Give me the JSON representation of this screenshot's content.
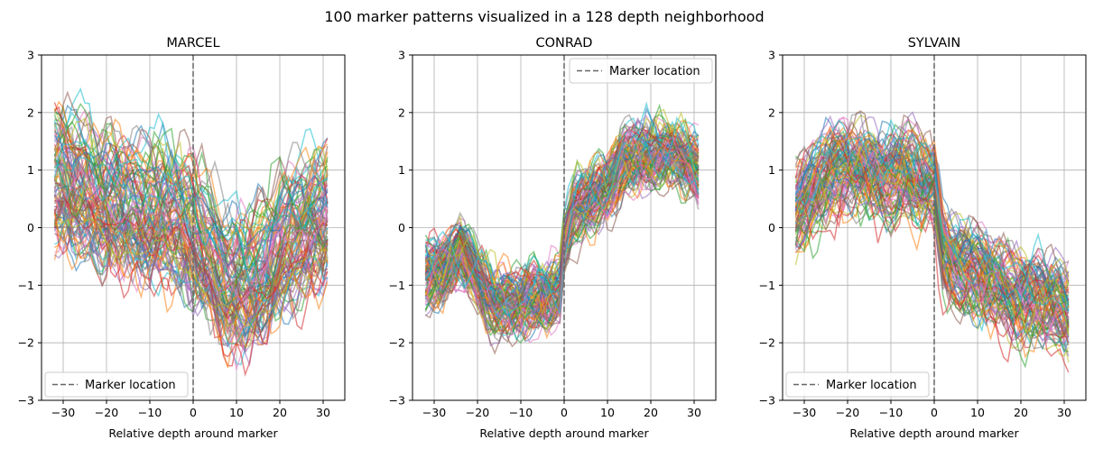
{
  "suptitle": "100 marker patterns visualized in a 128 depth neighborhood",
  "legend_label": "Marker location",
  "chart_data": [
    {
      "type": "line",
      "title": "MARCEL",
      "xlabel": "Relative depth around marker",
      "ylabel": "",
      "xlim": [
        -35,
        35
      ],
      "ylim": [
        -3,
        3
      ],
      "xticks": [
        -30,
        -20,
        -10,
        0,
        10,
        20,
        30
      ],
      "yticks": [
        -3,
        -2,
        -1,
        0,
        1,
        2,
        3
      ],
      "grid": true,
      "legend": "lower left",
      "marker_x": 0,
      "n_series": 100,
      "x_range": [
        -32,
        31
      ],
      "trend": {
        "x": [
          -32,
          -28,
          -24,
          -20,
          -16,
          -12,
          -8,
          -4,
          0,
          4,
          8,
          12,
          16,
          20,
          24,
          28,
          31
        ],
        "y": [
          0.9,
          0.8,
          0.7,
          0.5,
          0.4,
          0.35,
          0.3,
          0.2,
          0.0,
          -0.4,
          -0.9,
          -1.0,
          -0.7,
          -0.3,
          -0.1,
          0.2,
          0.3
        ]
      },
      "spread": 0.9
    },
    {
      "type": "line",
      "title": "CONRAD",
      "xlabel": "Relative depth around marker",
      "ylabel": "",
      "xlim": [
        -35,
        35
      ],
      "ylim": [
        -3,
        3
      ],
      "xticks": [
        -30,
        -20,
        -10,
        0,
        10,
        20,
        30
      ],
      "yticks": [
        -3,
        -2,
        -1,
        0,
        1,
        2,
        3
      ],
      "grid": true,
      "legend": "upper right",
      "marker_x": 0,
      "n_series": 100,
      "x_range": [
        -32,
        31
      ],
      "trend": {
        "x": [
          -32,
          -28,
          -24,
          -20,
          -16,
          -12,
          -8,
          -4,
          -1,
          0,
          2,
          6,
          10,
          14,
          18,
          22,
          26,
          31
        ],
        "y": [
          -0.8,
          -0.7,
          -0.3,
          -0.9,
          -1.3,
          -1.3,
          -1.2,
          -1.2,
          -1.1,
          -0.2,
          0.3,
          0.5,
          0.7,
          1.2,
          1.3,
          1.3,
          1.3,
          1.0
        ]
      },
      "spread": 0.3
    },
    {
      "type": "line",
      "title": "SYLVAIN",
      "xlabel": "Relative depth around marker",
      "ylabel": "",
      "xlim": [
        -35,
        35
      ],
      "ylim": [
        -3,
        3
      ],
      "xticks": [
        -30,
        -20,
        -10,
        0,
        10,
        20,
        30
      ],
      "yticks": [
        -3,
        -2,
        -1,
        0,
        1,
        2,
        3
      ],
      "grid": true,
      "legend": "lower left",
      "marker_x": 0,
      "n_series": 100,
      "x_range": [
        -32,
        31
      ],
      "trend": {
        "x": [
          -32,
          -28,
          -24,
          -20,
          -16,
          -12,
          -8,
          -4,
          0,
          2,
          6,
          10,
          14,
          18,
          22,
          26,
          31
        ],
        "y": [
          0.3,
          0.7,
          0.9,
          1.0,
          1.0,
          0.9,
          0.9,
          0.8,
          0.7,
          -0.4,
          -0.7,
          -0.8,
          -1.0,
          -1.2,
          -1.2,
          -1.3,
          -1.5
        ]
      },
      "spread": 0.55
    }
  ],
  "colors": {
    "palette": [
      "#1f77b4",
      "#ff7f0e",
      "#2ca02c",
      "#d62728",
      "#9467bd",
      "#8c564b",
      "#e377c2",
      "#7f7f7f",
      "#bcbd22",
      "#17becf"
    ],
    "grid": "#b0b0b0",
    "marker_line": "#666666"
  }
}
